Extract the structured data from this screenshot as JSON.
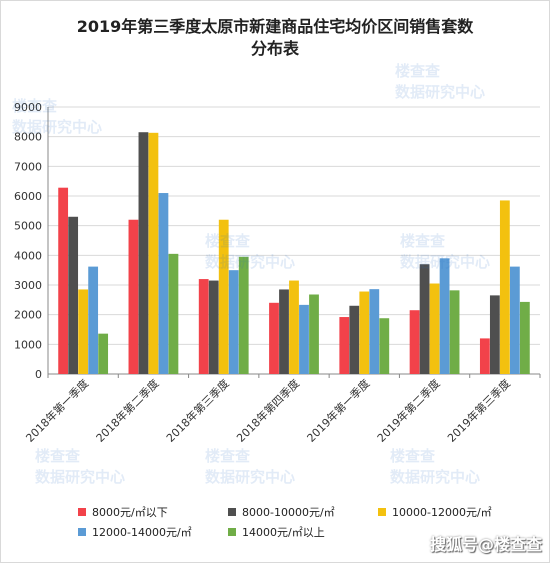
{
  "chart_data": {
    "type": "bar",
    "title_line1": "2019年第三季度太原市新建商品住宅均价区间销售套数",
    "title_line2": "分布表",
    "categories": [
      "2018年第一季度",
      "2018年第二季度",
      "2018年第三季度",
      "2018年第四季度",
      "2019年第一季度",
      "2019年第二季度",
      "2019年第三季度"
    ],
    "series": [
      {
        "name": "8000元/㎡以下",
        "color": "#f2424a",
        "values": [
          6280,
          5200,
          3200,
          2400,
          1920,
          2150,
          1200
        ]
      },
      {
        "name": "8000-10000元/㎡",
        "color": "#4f4f4f",
        "values": [
          5300,
          8150,
          3150,
          2850,
          2300,
          3700,
          2650
        ]
      },
      {
        "name": "10000-12000元/㎡",
        "color": "#f3c10f",
        "values": [
          2850,
          8130,
          5200,
          3150,
          2780,
          3050,
          5850
        ]
      },
      {
        "name": "12000-14000元/㎡",
        "color": "#5b9bd5",
        "values": [
          3620,
          6100,
          3500,
          2330,
          2860,
          3900,
          3620
        ]
      },
      {
        "name": "14000元/㎡以上",
        "color": "#70ad47",
        "values": [
          1360,
          4050,
          3950,
          2680,
          1880,
          2820,
          2430
        ]
      }
    ],
    "ylim": [
      0,
      9000
    ],
    "yticks": [
      0,
      1000,
      2000,
      3000,
      4000,
      5000,
      6000,
      7000,
      8000,
      9000
    ],
    "grid": true,
    "legend_position": "bottom"
  },
  "watermark": {
    "brand": "楼查查",
    "subtitle": "数据研究中心",
    "footer": "搜狐号@楼查查"
  }
}
